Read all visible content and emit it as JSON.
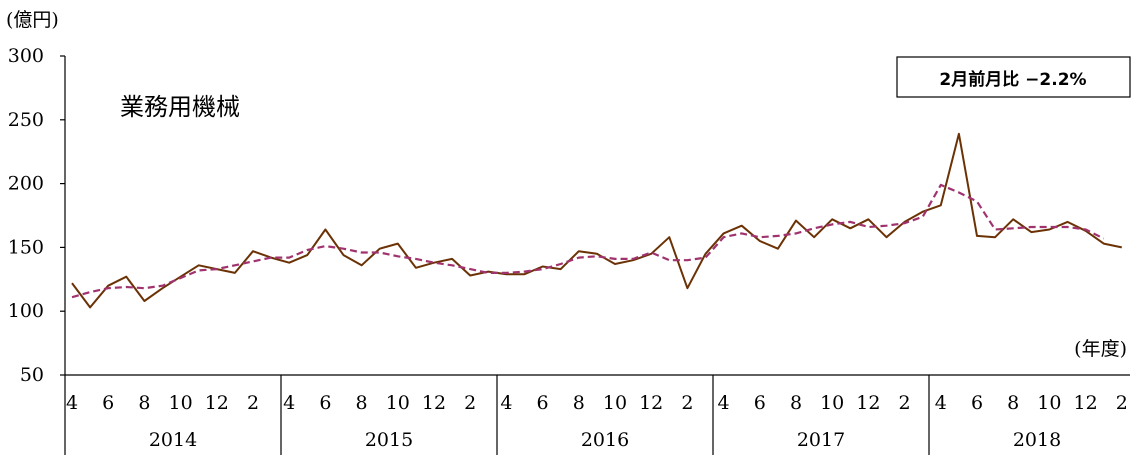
{
  "chart_data": {
    "type": "line",
    "title": "業務用機械",
    "ylabel": "(億円)",
    "xlabel": "(年度)",
    "annotation": "2月前月比 −2.2%",
    "ylim": [
      50,
      300
    ],
    "yticks": [
      "300",
      "250",
      "200",
      "150",
      "100",
      "50"
    ],
    "ytick_values": [
      300,
      250,
      200,
      150,
      100,
      50
    ],
    "month_labels": [
      "4",
      "6",
      "8",
      "10",
      "12",
      "2"
    ],
    "years": [
      "2014",
      "2015",
      "2016",
      "2017",
      "2018"
    ],
    "x_count": 59,
    "series": [
      {
        "style": "solid",
        "color": "#6b3206",
        "values": [
          122,
          103,
          120,
          127,
          108,
          118,
          127,
          136,
          133,
          130,
          147,
          142,
          138,
          144,
          164,
          144,
          136,
          149,
          153,
          134,
          138,
          141,
          128,
          131,
          129,
          129,
          135,
          133,
          147,
          145,
          137,
          140,
          145,
          158,
          118,
          145,
          161,
          167,
          155,
          149,
          171,
          158,
          172,
          165,
          172,
          158,
          170,
          178,
          183,
          239,
          159,
          158,
          172,
          162,
          164,
          170,
          163,
          153,
          150
        ]
      },
      {
        "style": "dashed",
        "color": "#a0336e",
        "values": [
          111,
          115,
          118,
          119,
          118,
          120,
          126,
          132,
          133,
          136,
          139,
          142,
          142,
          148,
          151,
          149,
          146,
          146,
          143,
          141,
          138,
          136,
          133,
          130,
          130,
          131,
          133,
          137,
          142,
          143,
          141,
          141,
          146,
          140,
          140,
          142,
          158,
          161,
          158,
          159,
          161,
          165,
          168,
          170,
          166,
          167,
          169,
          174,
          199,
          193,
          186,
          164,
          165,
          166,
          166,
          166,
          164,
          157
        ]
      }
    ]
  }
}
